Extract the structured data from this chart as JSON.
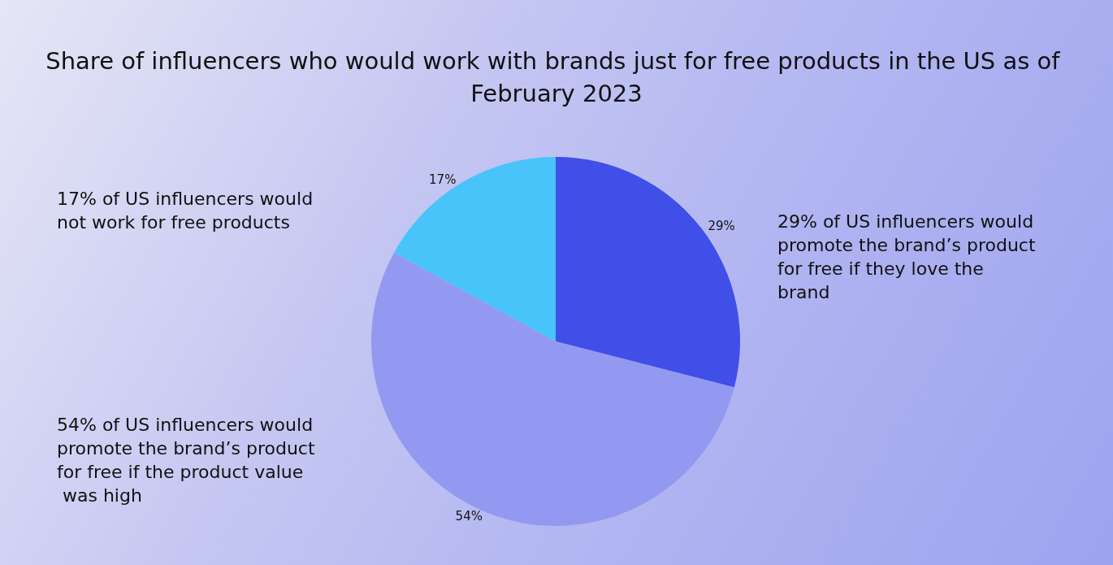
{
  "chart_data": {
    "type": "pie",
    "title": "Share of influencers who would work with brands just for free products in the US as of February 2023",
    "categories": [
      null,
      null,
      null
    ],
    "values": [
      29,
      54,
      17
    ],
    "value_labels": [
      "29%",
      "54%",
      "17%"
    ],
    "colors": [
      "#3f4fe8",
      "#9399f0",
      "#48c4fb"
    ],
    "annotations": [
      "17% of US influencers would not work for free products",
      "29% of US influencers would promote the brand’s product for free if they love the brand",
      "54% of US influencers would promote the brand’s product for free if the product value was high"
    ]
  }
}
